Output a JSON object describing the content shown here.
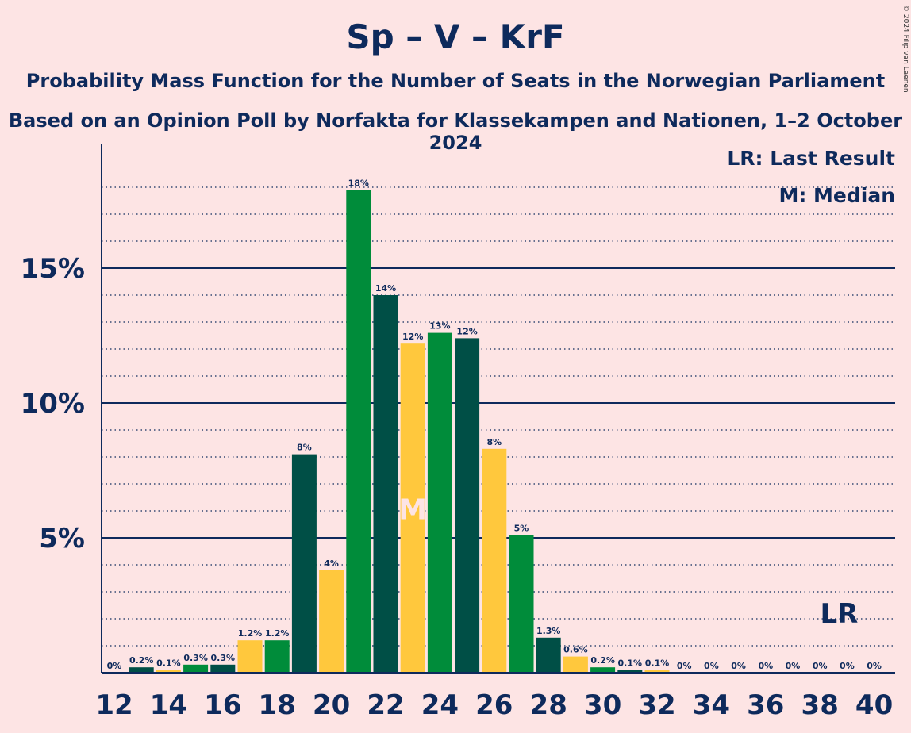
{
  "chart_data": {
    "type": "bar",
    "title": "Sp – V – KrF",
    "subtitle1": "Probability Mass Function for the Number of Seats in the Norwegian Parliament",
    "subtitle2": "Based on an Opinion Poll by Norfakta for Klassekampen and Nationen, 1–2 October 2024",
    "copyright": "© 2024 Filip van Laenen",
    "legend": {
      "lr": "LR: Last Result",
      "m": "M: Median"
    },
    "x_tick_labels": [
      "12",
      "14",
      "16",
      "18",
      "20",
      "22",
      "24",
      "26",
      "28",
      "30",
      "32",
      "34",
      "36",
      "38",
      "40"
    ],
    "y_tick_labels": [
      {
        "value": 5,
        "label": "5%"
      },
      {
        "value": 10,
        "label": "10%"
      },
      {
        "value": 15,
        "label": "15%"
      }
    ],
    "ylim": [
      0,
      19
    ],
    "xlim": [
      11.5,
      40.5
    ],
    "seats": [
      12,
      13,
      14,
      15,
      16,
      17,
      18,
      19,
      20,
      21,
      22,
      23,
      24,
      25,
      26,
      27,
      28,
      29,
      30,
      31,
      32,
      33,
      34,
      35,
      36,
      37,
      38,
      39,
      40
    ],
    "values": [
      0,
      0.2,
      0.1,
      0.3,
      0.3,
      1.2,
      1.2,
      8.1,
      3.8,
      17.9,
      14.0,
      12.2,
      12.6,
      12.4,
      8.3,
      5.1,
      1.3,
      0.6,
      0.2,
      0.1,
      0.1,
      0,
      0,
      0,
      0,
      0,
      0,
      0,
      0
    ],
    "labels": [
      "0%",
      "0.2%",
      "0.1%",
      "0.3%",
      "0.3%",
      "1.2%",
      "1.2%",
      "8%",
      "4%",
      "18%",
      "14%",
      "12%",
      "13%",
      "12%",
      "8%",
      "5%",
      "1.3%",
      "0.6%",
      "0.2%",
      "0.1%",
      "0.1%",
      "0%",
      "0%",
      "0%",
      "0%",
      "0%",
      "0%",
      "0%",
      "0%"
    ],
    "median_seat": 23,
    "median_label": "M",
    "last_result_seat": 39,
    "last_result_label": "LR",
    "colors": {
      "background": "#fde4e4",
      "text": "#0e2a5c",
      "green": "#008c3a",
      "dark_green": "#004f46",
      "yellow": "#ffc83d",
      "median_text": "#fde4e4"
    }
  }
}
